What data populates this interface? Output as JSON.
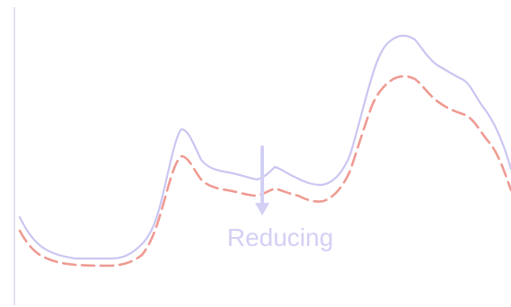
{
  "annotation": {
    "label": "Reducing",
    "arrow_direction": "down"
  },
  "curves": {
    "upper": {
      "style": "solid",
      "color": "#c9c6f2"
    },
    "lower": {
      "style": "dashed",
      "color": "#ef9a92"
    }
  },
  "colors": {
    "axis": "#d8d6f3",
    "annotation": "#d3d0f5",
    "background": "#ffffff"
  }
}
